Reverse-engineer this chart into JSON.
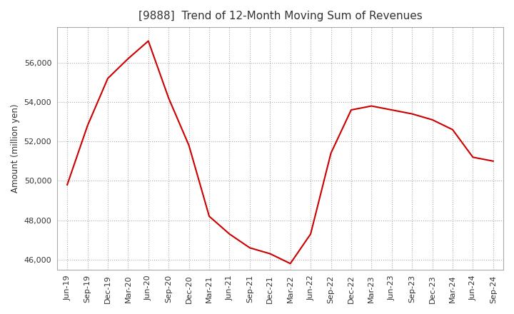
{
  "title": "[9888]  Trend of 12-Month Moving Sum of Revenues",
  "ylabel": "Amount (million yen)",
  "x_labels": [
    "Jun-19",
    "Sep-19",
    "Dec-19",
    "Mar-20",
    "Jun-20",
    "Sep-20",
    "Dec-20",
    "Mar-21",
    "Jun-21",
    "Sep-21",
    "Dec-21",
    "Mar-22",
    "Jun-22",
    "Sep-22",
    "Dec-22",
    "Mar-23",
    "Jun-23",
    "Sep-23",
    "Dec-23",
    "Mar-24",
    "Jun-24",
    "Sep-24"
  ],
  "y_values": [
    49800,
    52800,
    55200,
    56200,
    57100,
    54200,
    51800,
    48200,
    47300,
    46600,
    46300,
    45800,
    47300,
    51400,
    53600,
    53800,
    53600,
    53400,
    53100,
    52600,
    51200,
    51000
  ],
  "line_color": "#cc0000",
  "ylim": [
    45500,
    57800
  ],
  "yticks": [
    46000,
    48000,
    50000,
    52000,
    54000,
    56000
  ],
  "grid_color": "#aaaaaa",
  "background_color": "#ffffff",
  "title_fontsize": 11,
  "axis_fontsize": 8.5,
  "tick_fontsize": 8
}
